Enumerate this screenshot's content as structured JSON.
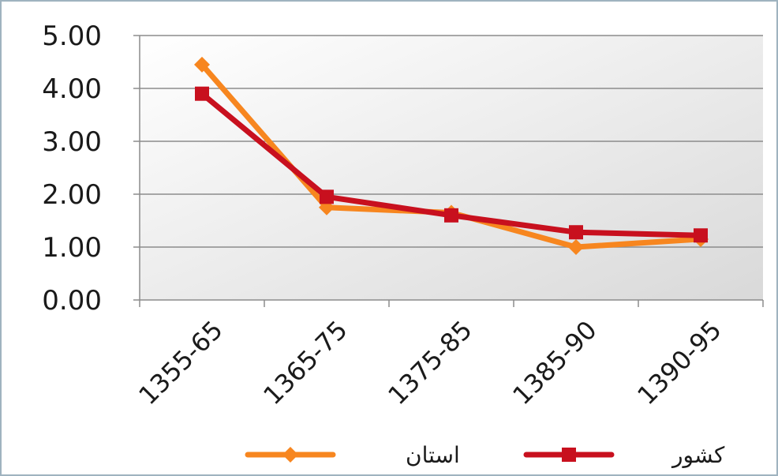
{
  "chart_data": {
    "type": "line",
    "categories": [
      "1355-65",
      "1365-75",
      "1375-85",
      "1385-90",
      "1390-95"
    ],
    "series": [
      {
        "name": "استان",
        "values": [
          4.45,
          1.75,
          1.65,
          1.0,
          1.15
        ],
        "color": "#f7861f"
      },
      {
        "name": "کشور",
        "values": [
          3.9,
          1.95,
          1.6,
          1.28,
          1.22
        ],
        "color": "#c8101e"
      }
    ],
    "yticks": [
      "0.00",
      "1.00",
      "2.00",
      "3.00",
      "4.00",
      "5.00"
    ],
    "ylim": [
      0,
      5
    ],
    "grid": true,
    "legend_position": "bottom",
    "title": "",
    "xlabel": "",
    "ylabel": ""
  }
}
